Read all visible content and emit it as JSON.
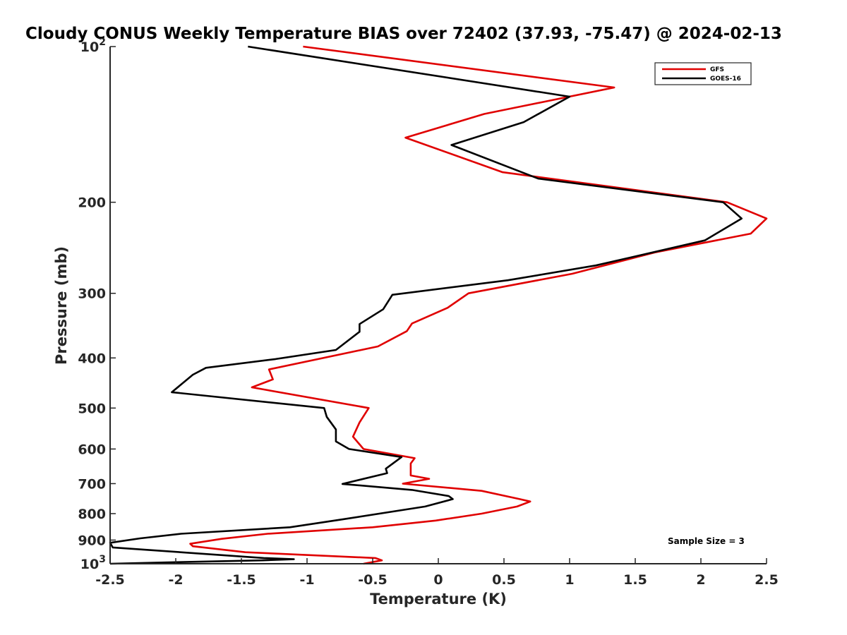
{
  "chart_data": {
    "type": "line",
    "title": "Cloudy CONUS Weekly Temperature BIAS over 72402 (37.93, -75.47) @ 2024-02-13",
    "xlabel": "Temperature (K)",
    "ylabel": "Pressure (mb)",
    "xlim": [
      -2.5,
      2.5
    ],
    "ylim": [
      100,
      1000
    ],
    "y_scale": "log",
    "y_reversed": true,
    "grid": false,
    "legend_position": "top-right",
    "x_ticks": [
      -2.5,
      -2,
      -1.5,
      -1,
      -0.5,
      0,
      0.5,
      1,
      1.5,
      2,
      2.5
    ],
    "x_tick_labels": [
      "-2.5",
      "-2",
      "-1.5",
      "-1",
      "-0.5",
      "0",
      "0.5",
      "1",
      "1.5",
      "2",
      "2.5"
    ],
    "y_ticks": [
      {
        "value": 100,
        "base": "10",
        "exp": "2"
      },
      {
        "value": 200,
        "label": "200"
      },
      {
        "value": 300,
        "label": "300"
      },
      {
        "value": 400,
        "label": "400"
      },
      {
        "value": 500,
        "label": "500"
      },
      {
        "value": 600,
        "label": "600"
      },
      {
        "value": 700,
        "label": "700"
      },
      {
        "value": 800,
        "label": "800"
      },
      {
        "value": 900,
        "label": "900"
      },
      {
        "value": 1000,
        "base": "10",
        "exp": "3"
      }
    ],
    "series": [
      {
        "name": "GFS",
        "color": "#e00000",
        "points": [
          [
            -1.03,
            100
          ],
          [
            1.34,
            120
          ],
          [
            0.35,
            135
          ],
          [
            -0.25,
            150
          ],
          [
            0.49,
            175
          ],
          [
            2.2,
            200
          ],
          [
            2.5,
            215
          ],
          [
            2.38,
            230
          ],
          [
            1.65,
            250
          ],
          [
            1.02,
            275
          ],
          [
            0.23,
            300
          ],
          [
            0.07,
            320
          ],
          [
            -0.2,
            343
          ],
          [
            -0.24,
            355
          ],
          [
            -0.46,
            380
          ],
          [
            -1.29,
            421
          ],
          [
            -1.26,
            440
          ],
          [
            -1.42,
            456
          ],
          [
            -0.53,
            500
          ],
          [
            -0.6,
            533
          ],
          [
            -0.65,
            568
          ],
          [
            -0.57,
            600
          ],
          [
            -0.18,
            625
          ],
          [
            -0.21,
            640
          ],
          [
            -0.21,
            675
          ],
          [
            -0.07,
            685
          ],
          [
            -0.27,
            700
          ],
          [
            0.33,
            723
          ],
          [
            0.62,
            750
          ],
          [
            0.7,
            758
          ],
          [
            0.6,
            775
          ],
          [
            0.33,
            800
          ],
          [
            -0.02,
            825
          ],
          [
            -0.5,
            850
          ],
          [
            -1.3,
            875
          ],
          [
            -1.65,
            895
          ],
          [
            -1.89,
            915
          ],
          [
            -1.87,
            925
          ],
          [
            -1.47,
            950
          ],
          [
            -0.48,
            975
          ],
          [
            -0.43,
            985
          ],
          [
            -0.57,
            1000
          ]
        ]
      },
      {
        "name": "GOES-16",
        "color": "#000000",
        "points": [
          [
            -1.45,
            100
          ],
          [
            1.0,
            125
          ],
          [
            0.65,
            140
          ],
          [
            0.1,
            155
          ],
          [
            0.76,
            180
          ],
          [
            2.17,
            200
          ],
          [
            2.31,
            215
          ],
          [
            2.03,
            237
          ],
          [
            1.2,
            265
          ],
          [
            0.53,
            283
          ],
          [
            -0.35,
            302
          ],
          [
            -0.42,
            322
          ],
          [
            -0.6,
            344
          ],
          [
            -0.6,
            356
          ],
          [
            -0.78,
            386
          ],
          [
            -1.24,
            402
          ],
          [
            -1.77,
            418
          ],
          [
            -1.87,
            431
          ],
          [
            -2.03,
            466
          ],
          [
            -0.87,
            500
          ],
          [
            -0.85,
            520
          ],
          [
            -0.78,
            550
          ],
          [
            -0.78,
            580
          ],
          [
            -0.68,
            600
          ],
          [
            -0.28,
            622
          ],
          [
            -0.4,
            655
          ],
          [
            -0.39,
            668
          ],
          [
            -0.73,
            701
          ],
          [
            -0.2,
            720
          ],
          [
            0.08,
            740
          ],
          [
            0.11,
            750
          ],
          [
            -0.1,
            775
          ],
          [
            -0.72,
            820
          ],
          [
            -1.13,
            850
          ],
          [
            -1.96,
            875
          ],
          [
            -2.27,
            893
          ],
          [
            -2.5,
            911
          ],
          [
            -2.48,
            930
          ],
          [
            -1.33,
            975
          ],
          [
            -1.1,
            980
          ],
          [
            -1.34,
            985
          ],
          [
            -2.0,
            993
          ],
          [
            -2.5,
            1000
          ]
        ]
      }
    ],
    "annotations": [
      {
        "text": "Sample Size = 3",
        "position": "bottom-right"
      }
    ]
  }
}
